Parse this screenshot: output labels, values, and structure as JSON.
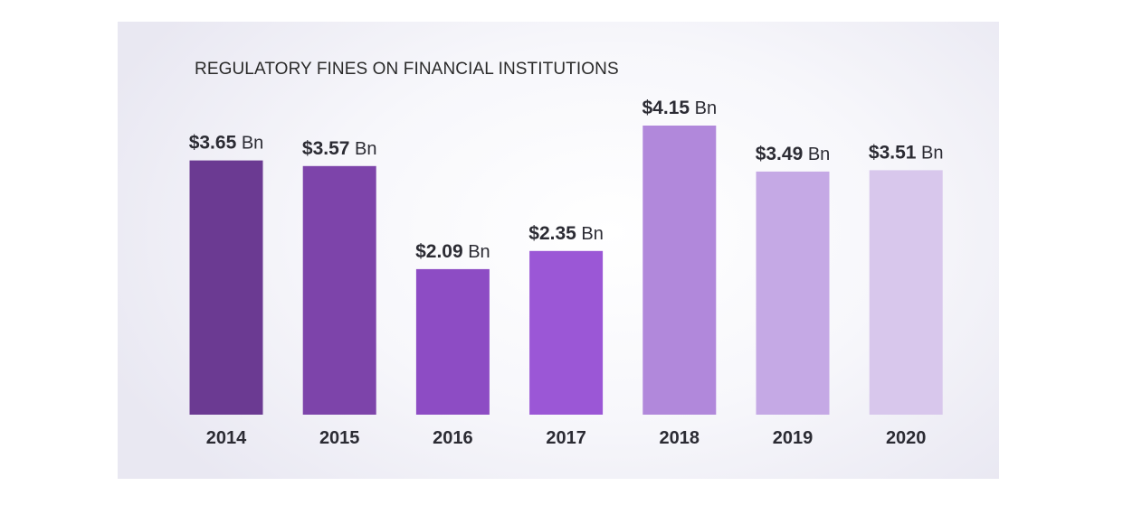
{
  "chart_data": {
    "type": "bar",
    "title": "REGULATORY FINES ON FINANCIAL INSTITUTIONS",
    "categories": [
      "2014",
      "2015",
      "2016",
      "2017",
      "2018",
      "2019",
      "2020"
    ],
    "values": [
      3.65,
      3.57,
      2.09,
      2.35,
      4.15,
      3.49,
      3.51
    ],
    "value_labels": [
      "$3.65",
      "$3.57",
      "$2.09",
      "$2.35",
      "$4.15",
      "$3.49",
      "$3.51"
    ],
    "value_unit": "Bn",
    "bar_colors": [
      "#6b3a92",
      "#7d44aa",
      "#8d4cc4",
      "#9b57d6",
      "#b188db",
      "#c5a9e5",
      "#d8c7ec"
    ],
    "xlabel": "",
    "ylabel": "",
    "ylim": [
      0,
      4.8
    ],
    "grid": false,
    "legend": "none"
  }
}
